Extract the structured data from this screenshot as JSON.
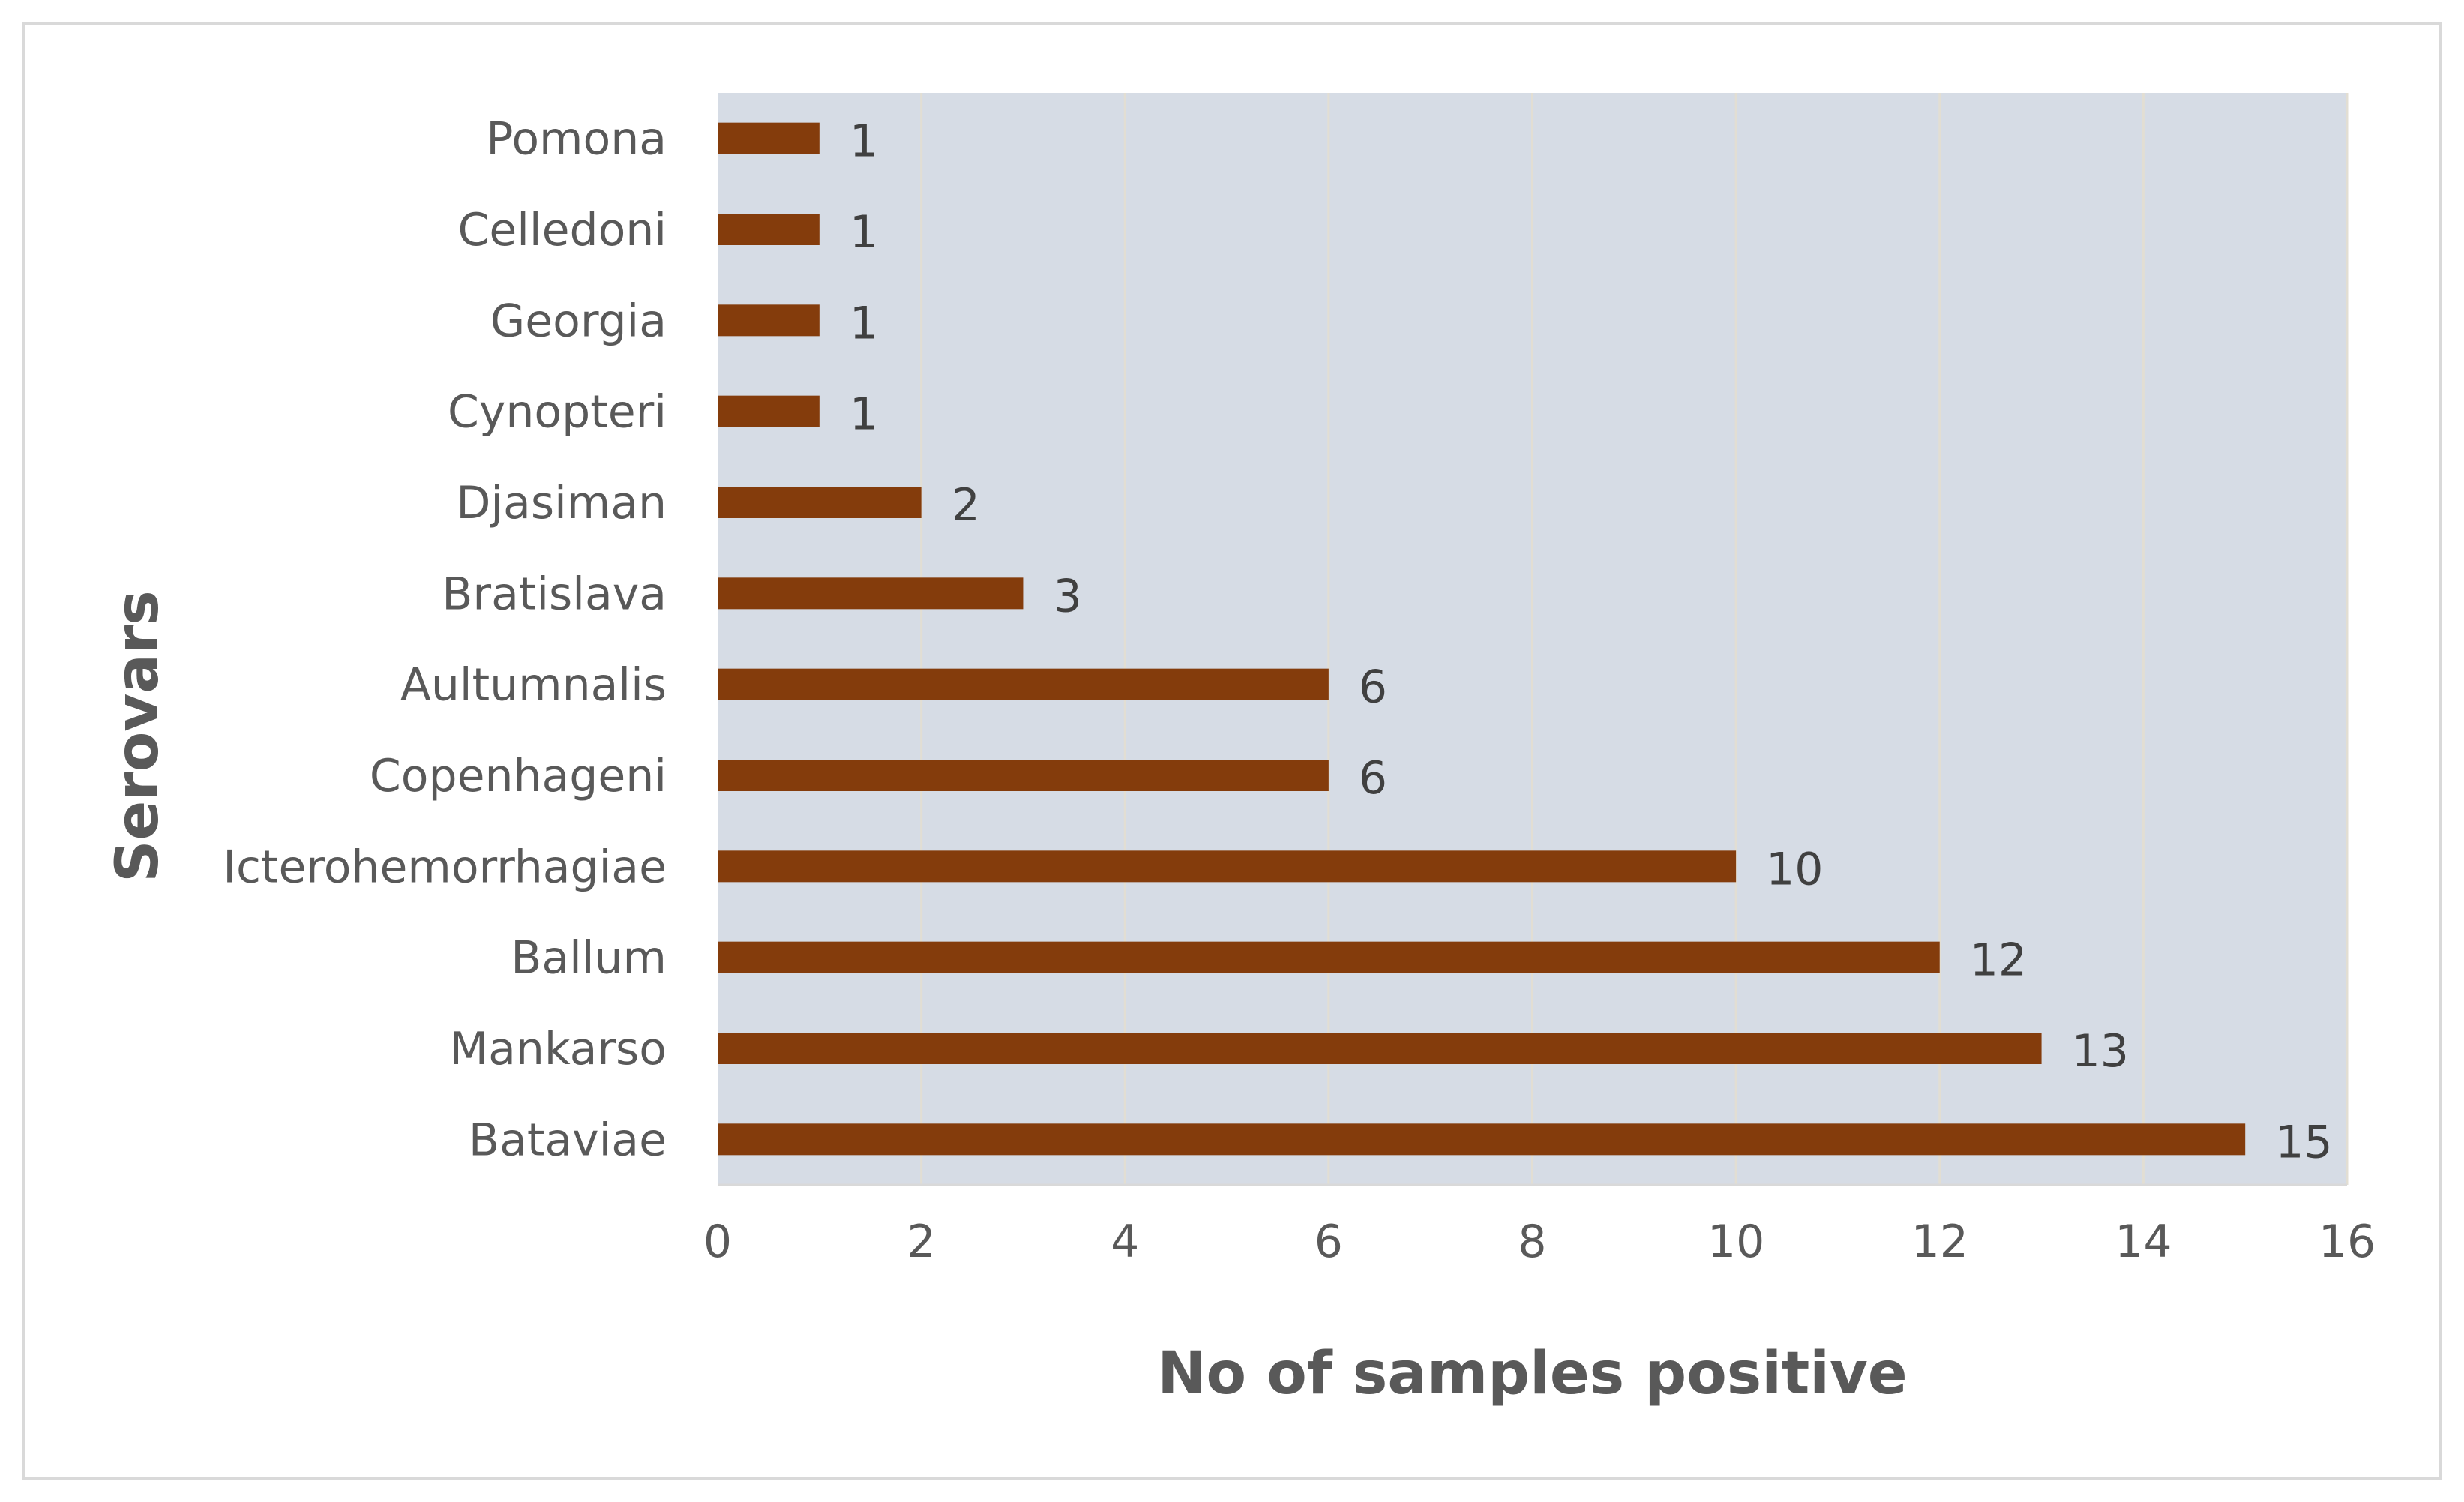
{
  "chart_data": {
    "type": "bar",
    "orientation": "horizontal",
    "title": "",
    "xlabel": "No of samples positive",
    "ylabel": "Serovars",
    "xlim": [
      0,
      16
    ],
    "x_ticks": [
      0,
      2,
      4,
      6,
      8,
      10,
      12,
      14,
      16
    ],
    "grid": true,
    "legend": "none",
    "categories": [
      "Bataviae",
      "Mankarso",
      "Ballum",
      "Icterohemorrhagiae",
      "Copenhageni",
      "Aultumnalis",
      "Bratislava",
      "Djasiman",
      "Cynopteri",
      "Georgia",
      "Celledoni",
      "Pomona"
    ],
    "values": [
      15,
      13,
      12,
      10,
      6,
      6,
      3,
      2,
      1,
      1,
      1,
      1
    ],
    "colors": {
      "bar": "#843C0C",
      "plot_background": "#D6DCE5",
      "gridline": "#E2DED3",
      "axis_line": "#D9D9D9"
    }
  }
}
